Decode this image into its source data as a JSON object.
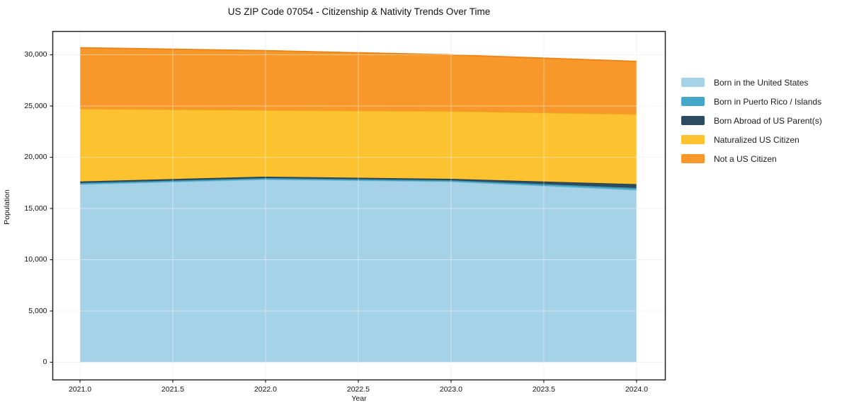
{
  "title": "US ZIP Code 07054 - Citizenship & Nativity Trends Over Time",
  "axes": {
    "xlabel": "Year",
    "ylabel": "Population",
    "x_tick_labels": [
      "2021.0",
      "2021.5",
      "2022.0",
      "2022.5",
      "2023.0",
      "2023.5",
      "2024.0"
    ],
    "y_tick_labels": [
      "0",
      "5,000",
      "10,000",
      "15,000",
      "20,000",
      "25,000",
      "30,000"
    ]
  },
  "colors": {
    "spine": "#222222",
    "tick": "#222222",
    "grid_under": "#e9e9e9",
    "grid_over": "rgba(255,255,255,0.45)",
    "text": "#111111"
  },
  "chart_data": {
    "type": "area",
    "stacked": true,
    "title": "US ZIP Code 07054 - Citizenship & Nativity Trends Over Time",
    "xlabel": "Year",
    "ylabel": "Population",
    "x": [
      2021,
      2022,
      2023,
      2024
    ],
    "x_ticks": [
      2021.0,
      2021.5,
      2022.0,
      2022.5,
      2023.0,
      2023.5,
      2024.0
    ],
    "y_ticks": [
      0,
      5000,
      10000,
      15000,
      20000,
      25000,
      30000
    ],
    "xlim": [
      2020.853,
      2024.155
    ],
    "ylim": [
      -1724,
      32276
    ],
    "grid": true,
    "legend_position": "right-outside",
    "series": [
      {
        "name": "Born in the United States",
        "values": [
          17350,
          17830,
          17620,
          16800
        ],
        "fill": "#A6D2E8",
        "edge": "#8CC1DB"
      },
      {
        "name": "Born in Puerto Rico / Islands",
        "values": [
          140,
          130,
          130,
          200
        ],
        "fill": "#45A8C8",
        "edge": "#3A93B0"
      },
      {
        "name": "Born Abroad of US Parent(s)",
        "values": [
          150,
          150,
          150,
          380
        ],
        "fill": "#2C4B5E",
        "edge": "#24404F"
      },
      {
        "name": "Naturalized US Citizen",
        "values": [
          7090,
          6480,
          6590,
          6830
        ],
        "fill": "#FDC22F",
        "edge": "#EDAF1A"
      },
      {
        "name": "Not a US Citizen",
        "values": [
          5950,
          5810,
          5500,
          5140
        ],
        "fill": "#F8982B",
        "edge": "#EA8414"
      }
    ]
  }
}
